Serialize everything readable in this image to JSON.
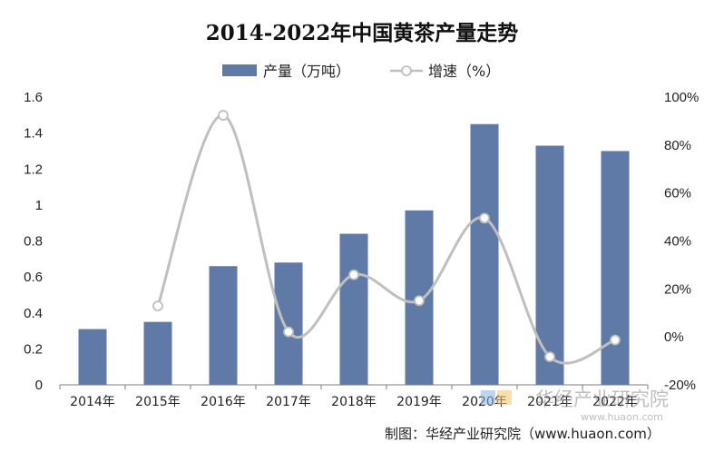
{
  "chart_data": {
    "type": "bar",
    "title": "2014-2022年中国黄茶产量走势",
    "categories": [
      "2014年",
      "2015年",
      "2016年",
      "2017年",
      "2018年",
      "2019年",
      "2020年",
      "2021年",
      "2022年"
    ],
    "series": [
      {
        "name": "产量（万吨）",
        "type": "bar",
        "axis": "left",
        "color": "#5F7AA6",
        "values": [
          0.31,
          0.35,
          0.66,
          0.68,
          0.84,
          0.97,
          1.45,
          1.33,
          1.3
        ]
      },
      {
        "name": "增速（%）",
        "type": "line",
        "axis": "right",
        "color": "#BFBFBF",
        "marker": "hollow-circle",
        "values": [
          null,
          12.9,
          92.4,
          2.1,
          25.9,
          15.1,
          49.5,
          -8.3,
          -1.3
        ]
      }
    ],
    "y_left": {
      "ylim": [
        0,
        1.6
      ],
      "ticks": [
        0,
        0.2,
        0.4,
        0.6,
        0.8,
        1,
        1.2,
        1.4,
        1.6
      ],
      "tick_labels": [
        "0",
        "0.2",
        "0.4",
        "0.6",
        "0.8",
        "1",
        "1.2",
        "1.4",
        "1.6"
      ]
    },
    "y_right": {
      "ylim": [
        -20,
        100
      ],
      "ticks": [
        -20,
        0,
        20,
        40,
        60,
        80,
        100
      ],
      "tick_labels": [
        "-20%",
        "0%",
        "20%",
        "40%",
        "60%",
        "80%",
        "100%"
      ]
    },
    "grid": false,
    "legend_position": "top-center"
  },
  "source_credit": "制图：华经产业研究院（www.huaon.com）",
  "watermark": {
    "text": "华经产业研究院",
    "url": "www.huaon.com"
  }
}
